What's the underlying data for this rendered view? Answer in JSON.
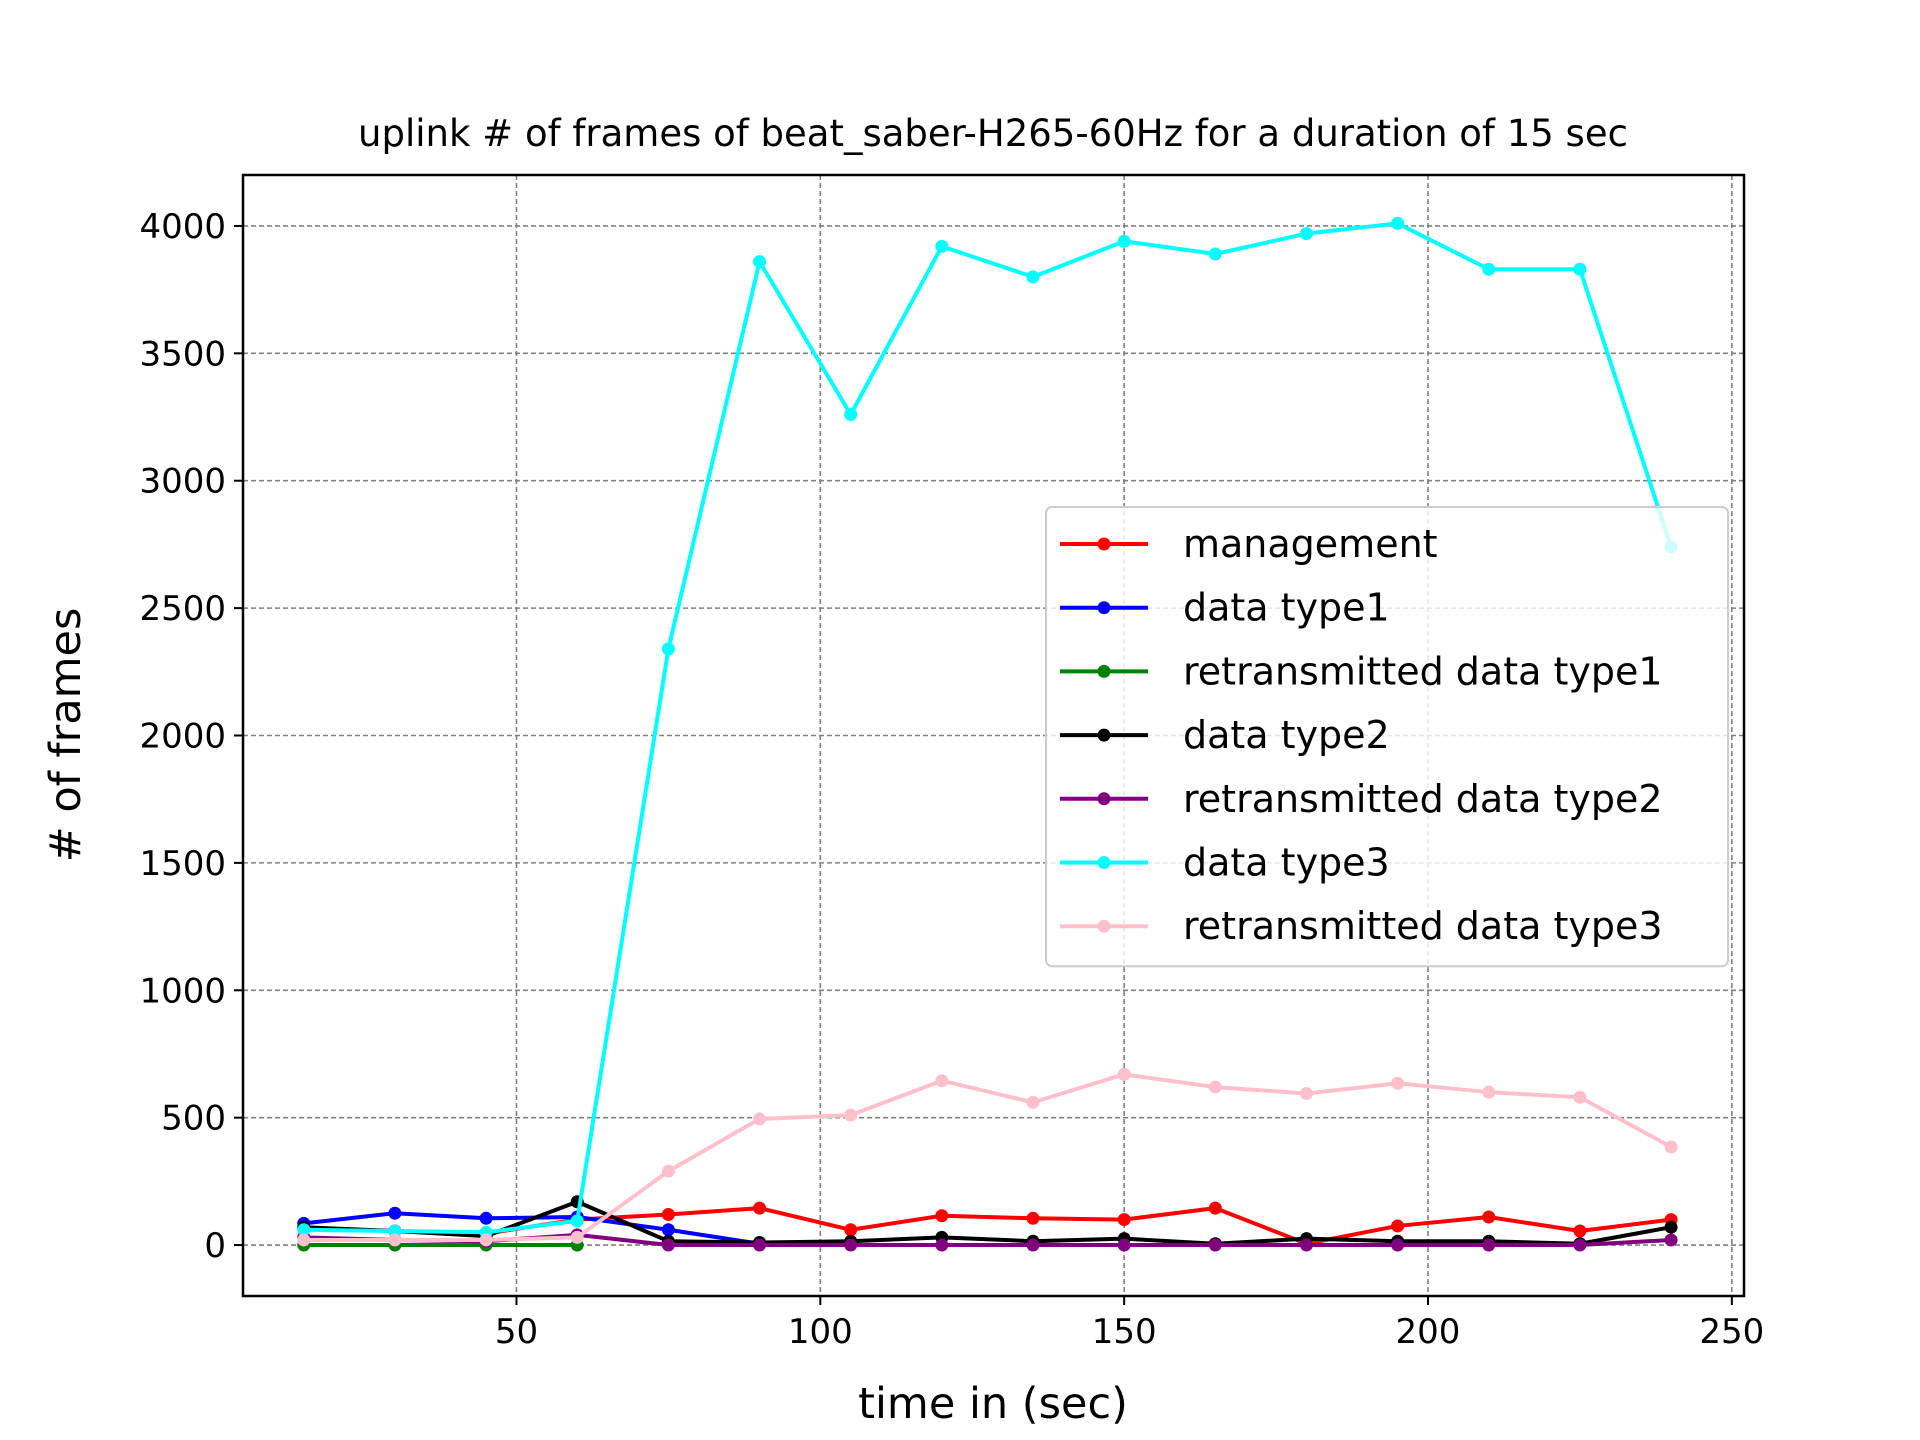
{
  "chart_data": {
    "type": "line",
    "title": "uplink # of frames of beat_saber-H265-60Hz for a duration of 15 sec",
    "xlabel": "time in (sec)",
    "ylabel": "# of frames",
    "xlim": [
      5,
      252
    ],
    "ylim": [
      -200,
      4200
    ],
    "xticks": [
      50,
      100,
      150,
      200,
      250
    ],
    "yticks": [
      0,
      500,
      1000,
      1500,
      2000,
      2500,
      3000,
      3500,
      4000
    ],
    "grid": true,
    "legend_position": "center-right",
    "x": [
      15,
      30,
      45,
      60,
      75,
      90,
      105,
      120,
      135,
      150,
      165,
      180,
      195,
      210,
      225,
      240
    ],
    "series": [
      {
        "name": "management",
        "color": "#ff0000",
        "x": [
          15,
          30,
          45,
          60,
          75,
          90,
          105,
          120,
          135,
          150,
          165,
          180,
          195,
          210,
          225,
          240
        ],
        "values": [
          65,
          55,
          45,
          100,
          120,
          145,
          60,
          115,
          105,
          100,
          145,
          5,
          75,
          110,
          55,
          100
        ]
      },
      {
        "name": "data type1",
        "color": "#0000ff",
        "x": [
          15,
          30,
          45,
          60,
          75,
          90
        ],
        "values": [
          85,
          125,
          105,
          110,
          60,
          5
        ]
      },
      {
        "name": "retransmitted data type1",
        "color": "#008000",
        "x": [
          15,
          30,
          45,
          60
        ],
        "values": [
          0,
          0,
          0,
          0
        ]
      },
      {
        "name": "data type2",
        "color": "#000000",
        "x": [
          15,
          30,
          45,
          60,
          75,
          90,
          105,
          120,
          135,
          150,
          165,
          180,
          195,
          210,
          225,
          240
        ],
        "values": [
          70,
          55,
          35,
          170,
          15,
          10,
          15,
          30,
          15,
          25,
          5,
          25,
          15,
          15,
          5,
          70
        ]
      },
      {
        "name": "retransmitted data type2",
        "color": "#800080",
        "x": [
          15,
          30,
          45,
          60,
          75,
          90,
          105,
          120,
          135,
          150,
          165,
          180,
          195,
          210,
          225,
          240
        ],
        "values": [
          30,
          20,
          15,
          40,
          0,
          0,
          0,
          0,
          0,
          0,
          0,
          0,
          0,
          0,
          0,
          20
        ]
      },
      {
        "name": "data type3",
        "color": "#00ffff",
        "x": [
          15,
          30,
          45,
          60,
          75,
          90,
          105,
          120,
          135,
          150,
          165,
          180,
          195,
          210,
          225,
          240
        ],
        "values": [
          60,
          55,
          50,
          95,
          2340,
          3860,
          3260,
          3920,
          3800,
          3940,
          3890,
          3970,
          4010,
          3830,
          3830,
          2740
        ]
      },
      {
        "name": "retransmitted data type3",
        "color": "#ffc0cb",
        "x": [
          15,
          30,
          45,
          60,
          75,
          90,
          105,
          120,
          135,
          150,
          165,
          180,
          195,
          210,
          225,
          240
        ],
        "values": [
          20,
          20,
          20,
          30,
          290,
          495,
          510,
          645,
          560,
          670,
          620,
          595,
          635,
          600,
          580,
          385
        ]
      }
    ]
  }
}
